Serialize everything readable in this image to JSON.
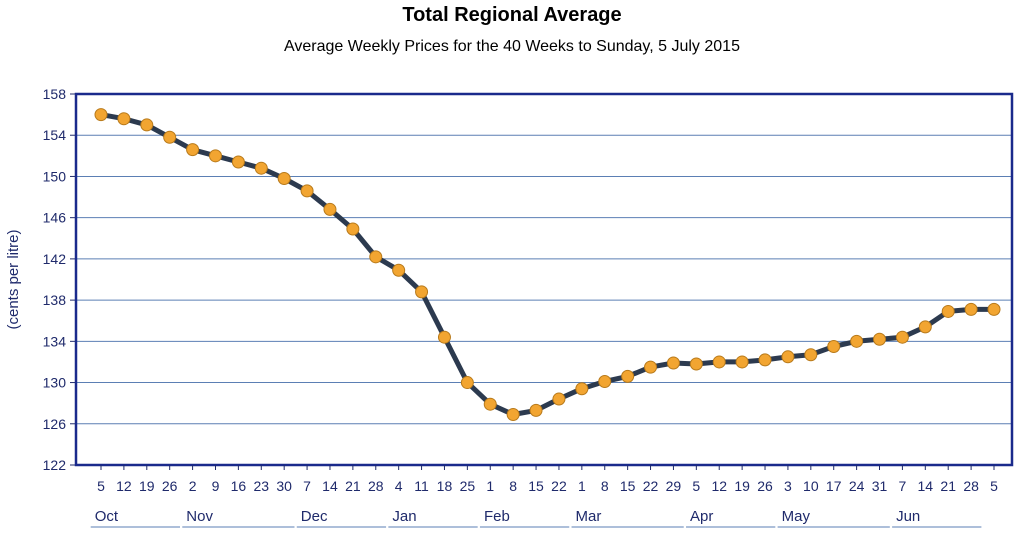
{
  "chart_data": {
    "type": "line",
    "title": "Total Regional Average",
    "subtitle": "Average Weekly Prices for the 40 Weeks to Sunday, 5 July 2015",
    "ylabel": "(cents per litre)",
    "ylim": [
      122,
      158
    ],
    "yticks": [
      122,
      126,
      130,
      134,
      138,
      142,
      146,
      150,
      154,
      158
    ],
    "grid": "horizontal",
    "x": [
      "5",
      "12",
      "19",
      "26",
      "2",
      "9",
      "16",
      "23",
      "30",
      "7",
      "14",
      "21",
      "28",
      "4",
      "11",
      "18",
      "25",
      "1",
      "8",
      "15",
      "22",
      "1",
      "8",
      "15",
      "22",
      "29",
      "5",
      "12",
      "19",
      "26",
      "3",
      "10",
      "17",
      "24",
      "31",
      "7",
      "14",
      "21",
      "28",
      "5"
    ],
    "months": [
      {
        "label": "Oct",
        "start": 0,
        "count": 4
      },
      {
        "label": "Nov",
        "start": 4,
        "count": 5
      },
      {
        "label": "Dec",
        "start": 9,
        "count": 4
      },
      {
        "label": "Jan",
        "start": 13,
        "count": 4
      },
      {
        "label": "Feb",
        "start": 17,
        "count": 4
      },
      {
        "label": "Mar",
        "start": 21,
        "count": 5
      },
      {
        "label": "Apr",
        "start": 26,
        "count": 4
      },
      {
        "label": "May",
        "start": 30,
        "count": 5
      },
      {
        "label": "Jun",
        "start": 35,
        "count": 4
      }
    ],
    "series": [
      {
        "values": [
          156.0,
          155.6,
          155.0,
          153.8,
          152.6,
          152.0,
          151.4,
          150.8,
          149.8,
          148.6,
          146.8,
          144.9,
          142.2,
          140.9,
          138.8,
          134.4,
          130.0,
          127.9,
          126.9,
          127.3,
          128.4,
          129.4,
          130.1,
          130.6,
          131.5,
          131.9,
          131.8,
          132.0,
          132.0,
          132.2,
          132.5,
          132.7,
          133.5,
          134.0,
          134.2,
          134.4,
          135.4,
          136.9,
          137.1,
          137.1
        ],
        "line_color": "#2c3a4f",
        "marker_color": "#f2a531",
        "marker_edge": "#b87a1b"
      }
    ]
  }
}
